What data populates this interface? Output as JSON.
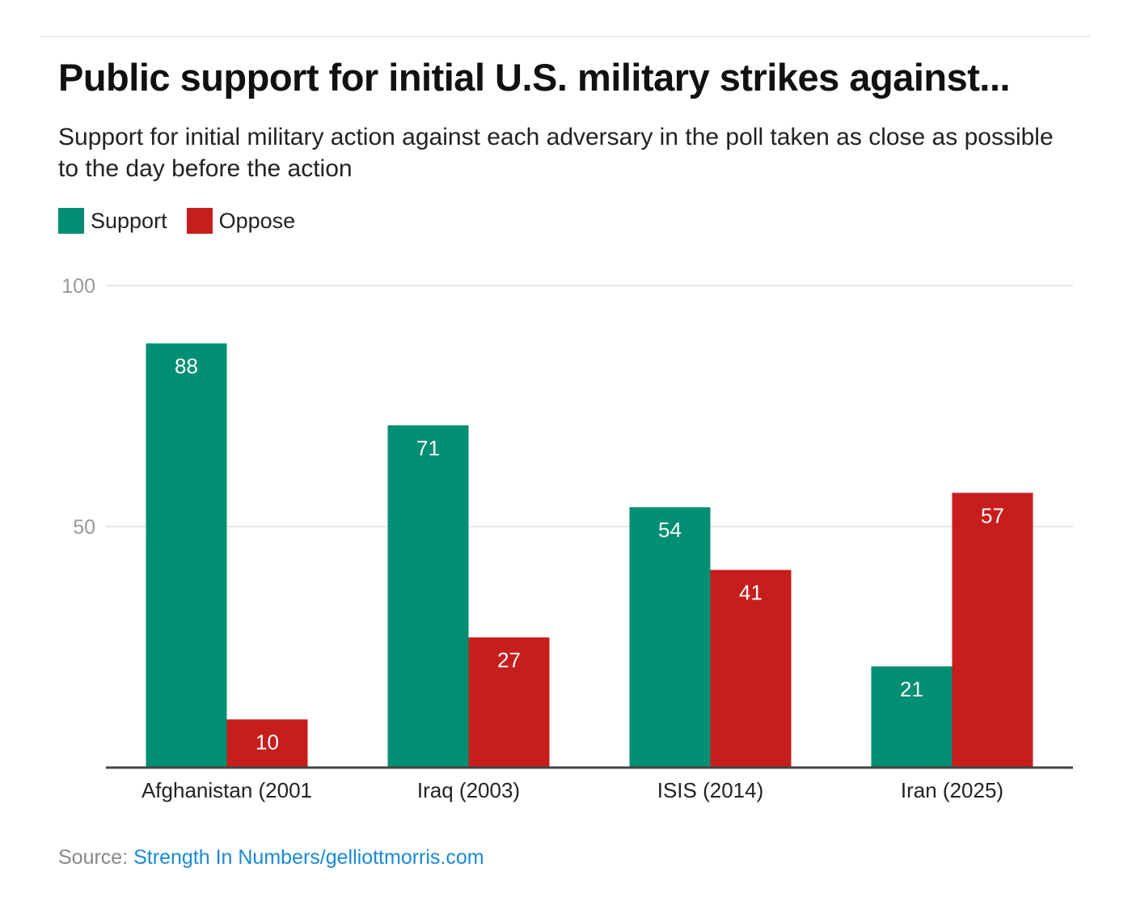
{
  "chart_data": {
    "type": "bar",
    "title": "Public support for initial U.S. military strikes against...",
    "subtitle": "Support for initial military action against each adversary in the poll taken as close as possible to the day before the action",
    "categories": [
      "Afghanistan (2001",
      "Iraq (2003)",
      "ISIS (2014)",
      "Iran (2025)"
    ],
    "series": [
      {
        "name": "Support",
        "color": "#008f72",
        "values": [
          88,
          71,
          54,
          21
        ]
      },
      {
        "name": "Oppose",
        "color": "#c71e1d",
        "values": [
          10,
          27,
          41,
          57
        ]
      }
    ],
    "ylim": [
      0,
      100
    ],
    "yticks": [
      50,
      100
    ],
    "grid": true,
    "legend": "top-left",
    "xlabel": "",
    "ylabel": ""
  },
  "source": {
    "label": "Source:",
    "link_text": "Strength In Numbers/gelliottmorris.com"
  }
}
